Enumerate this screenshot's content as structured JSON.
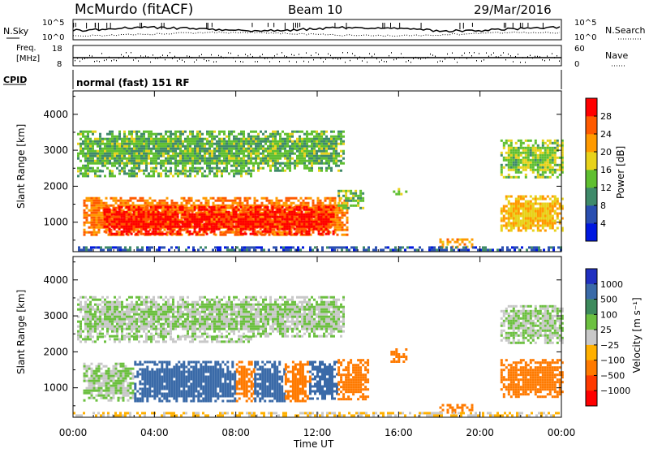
{
  "header": {
    "station": "McMurdo (fitACF)",
    "beam": "Beam 10",
    "date": "29/Mar/2016"
  },
  "strip_panels": {
    "nsky_label": "N.Sky",
    "nsearch_label": "N.Search",
    "noise_ticks_left": [
      "10^5",
      "10^0"
    ],
    "noise_ticks_right": [
      "10^5",
      "10^0"
    ],
    "freq_label": [
      "Freq.",
      "[MHz]"
    ],
    "freq_ticks": [
      "18",
      "8"
    ],
    "nave_label": "Nave",
    "nave_ticks": [
      "60",
      "0"
    ],
    "cpid_label": "CPID",
    "cpid_text": "normal (fast) 151 RF"
  },
  "colors": {
    "power_scale": [
      "#0018e0",
      "#2a4fb0",
      "#3f8a6a",
      "#5fbf30",
      "#e8d21a",
      "#ff9a00",
      "#ff5a00",
      "#ff0000"
    ],
    "velocity_scale": [
      "#2030c0",
      "#3a6aa8",
      "#3d8a5c",
      "#6cc040",
      "#c8c8c8",
      "#ffb000",
      "#ff7a00",
      "#ff3a00",
      "#ff0000"
    ]
  },
  "chart_data": [
    {
      "type": "heatmap",
      "panel": "power",
      "ylabel": "Slant Range [km]",
      "xlabel": "",
      "yticks": [
        1000,
        2000,
        3000,
        4000
      ],
      "ylim": [
        180,
        4650
      ],
      "xlim": [
        0,
        24
      ],
      "colorbar": {
        "label": "Power [dB]",
        "ticks": [
          4,
          8,
          12,
          16,
          20,
          24,
          28
        ],
        "range": [
          0,
          32
        ]
      },
      "regions": [
        {
          "t0": 0.2,
          "t1": 13.3,
          "r0": 2450,
          "r1": 3550,
          "level": 13
        },
        {
          "t0": 0.2,
          "t1": 8.8,
          "r0": 2250,
          "r1": 2450,
          "level": 13
        },
        {
          "t0": 0.5,
          "t1": 13.5,
          "r0": 650,
          "r1": 1700,
          "level": 24
        },
        {
          "t0": 1.5,
          "t1": 12.8,
          "r0": 700,
          "r1": 1450,
          "level": 30
        },
        {
          "t0": 13.0,
          "t1": 14.3,
          "r0": 1400,
          "r1": 1900,
          "level": 14
        },
        {
          "t0": 15.6,
          "t1": 16.4,
          "r0": 1750,
          "r1": 1950,
          "level": 14
        },
        {
          "t0": 18.0,
          "t1": 19.6,
          "r0": 300,
          "r1": 550,
          "level": 22
        },
        {
          "t0": 21.0,
          "t1": 24.0,
          "r0": 2250,
          "r1": 3300,
          "level": 15
        },
        {
          "t0": 21.0,
          "t1": 24.0,
          "r0": 750,
          "r1": 1750,
          "level": 20
        },
        {
          "t0": 0.0,
          "t1": 24.0,
          "r0": 200,
          "r1": 330,
          "level": 6
        }
      ]
    },
    {
      "type": "heatmap",
      "panel": "velocity",
      "ylabel": "Slant Range [km]",
      "xlabel": "Time UT",
      "xticks": [
        "00:00",
        "04:00",
        "08:00",
        "12:00",
        "16:00",
        "20:00",
        "00:00"
      ],
      "yticks": [
        1000,
        2000,
        3000,
        4000
      ],
      "ylim": [
        180,
        4650
      ],
      "xlim": [
        0,
        24
      ],
      "colorbar": {
        "label": "Velocity [m s⁻¹]",
        "ticks": [
          "1000",
          "500",
          "100",
          "25",
          "−25",
          "−100",
          "−500",
          "−1000"
        ]
      },
      "regions": [
        {
          "t0": 0.2,
          "t1": 13.3,
          "r0": 2450,
          "r1": 3550,
          "level": 0
        },
        {
          "t0": 0.2,
          "t1": 8.8,
          "r0": 2250,
          "r1": 2450,
          "level": 0
        },
        {
          "t0": 0.5,
          "t1": 3.0,
          "r0": 650,
          "r1": 1700,
          "level": 1
        },
        {
          "t0": 3.0,
          "t1": 8.0,
          "r0": 600,
          "r1": 1750,
          "level": 200
        },
        {
          "t0": 8.0,
          "t1": 8.9,
          "r0": 600,
          "r1": 1750,
          "level": -300
        },
        {
          "t0": 8.9,
          "t1": 10.4,
          "r0": 600,
          "r1": 1750,
          "level": 200
        },
        {
          "t0": 10.4,
          "t1": 11.6,
          "r0": 650,
          "r1": 1750,
          "level": -300
        },
        {
          "t0": 11.6,
          "t1": 13.0,
          "r0": 700,
          "r1": 1750,
          "level": 200
        },
        {
          "t0": 13.0,
          "t1": 14.5,
          "r0": 700,
          "r1": 1800,
          "level": -200
        },
        {
          "t0": 15.6,
          "t1": 16.4,
          "r0": 1750,
          "r1": 2100,
          "level": -200
        },
        {
          "t0": 18.0,
          "t1": 19.6,
          "r0": 300,
          "r1": 550,
          "level": -300
        },
        {
          "t0": 21.0,
          "t1": 24.0,
          "r0": 2250,
          "r1": 3300,
          "level": 0
        },
        {
          "t0": 21.0,
          "t1": 24.0,
          "r0": 750,
          "r1": 1800,
          "level": -300
        },
        {
          "t0": 0.0,
          "t1": 24.0,
          "r0": 200,
          "r1": 330,
          "level": -30
        }
      ]
    }
  ]
}
